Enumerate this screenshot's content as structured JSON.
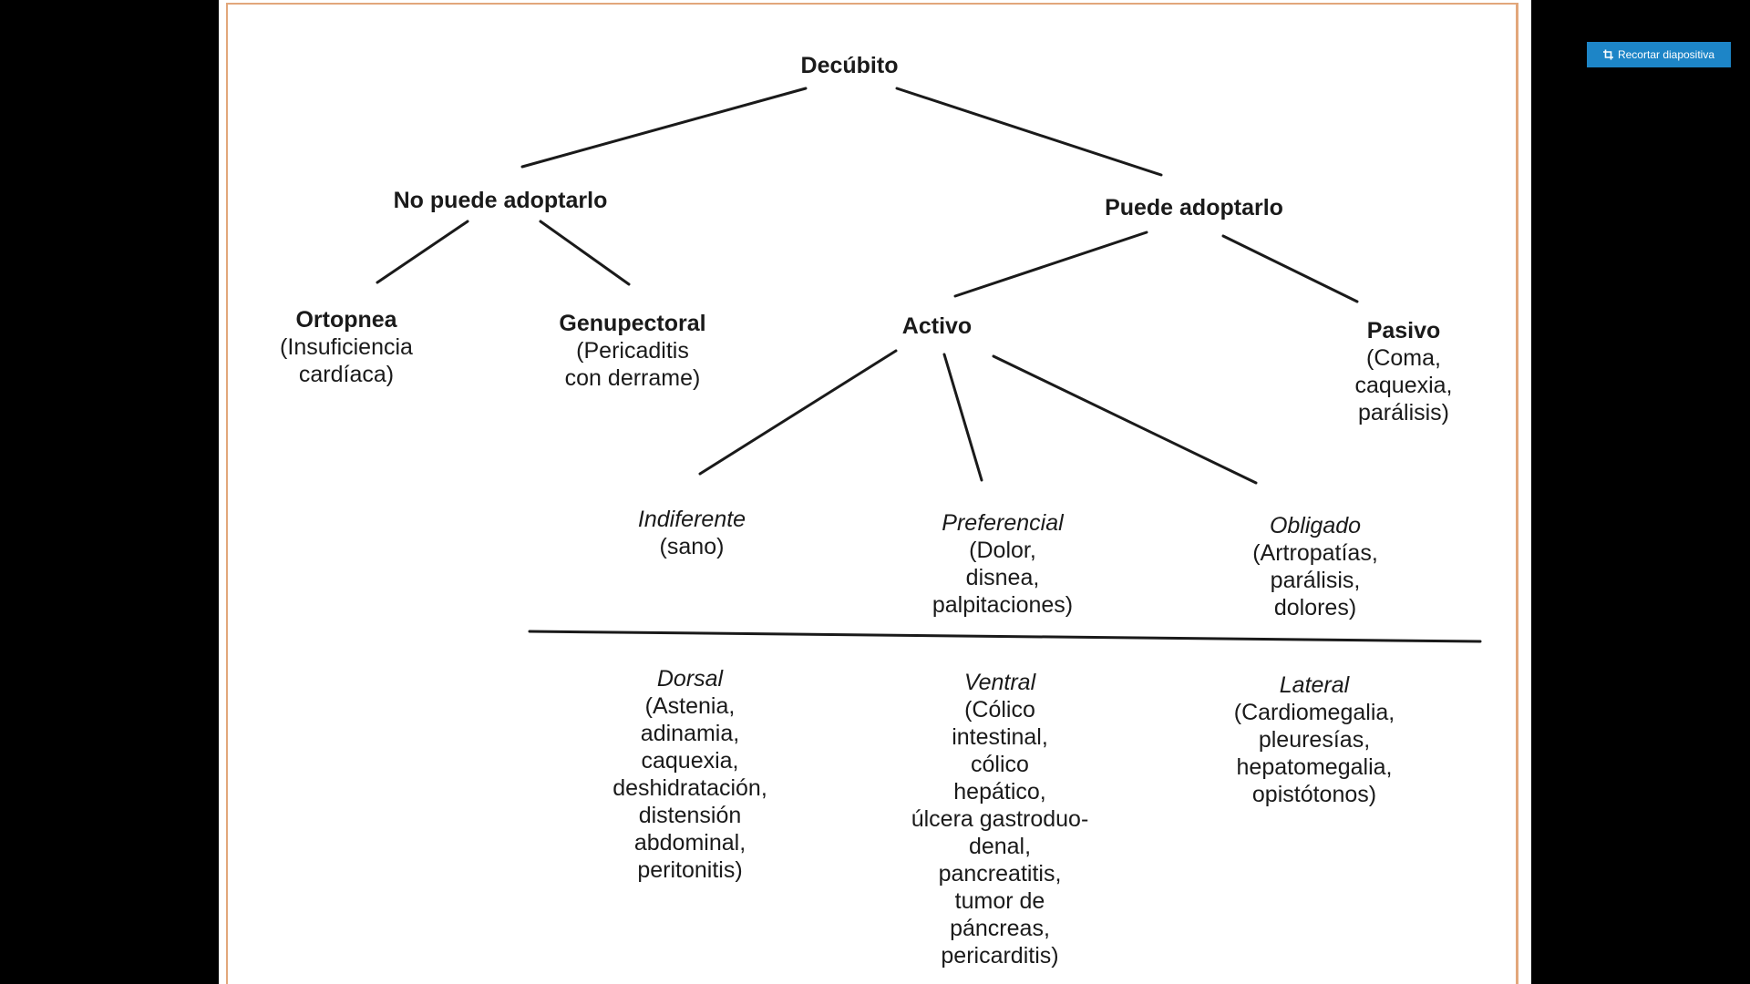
{
  "toolbar": {
    "crop_label": "Recortar diapositiva",
    "crop_icon": "crop-icon",
    "accent": "#1d85c7"
  },
  "slide": {
    "border_color": "#e2a77b",
    "root": {
      "title": "Decúbito"
    },
    "branches": {
      "cannot": {
        "title": "No puede adoptarlo",
        "children": [
          {
            "title": "Ortopnea",
            "detail": "(Insuficiencia\ncardíaca)"
          },
          {
            "title": "Genupectoral",
            "detail": "(Pericaditis\ncon derrame)"
          }
        ]
      },
      "can": {
        "title": "Puede adoptarlo",
        "active": {
          "title": "Activo",
          "children": [
            {
              "title": "Indiferente",
              "detail": "(sano)"
            },
            {
              "title": "Preferencial",
              "detail": "(Dolor,\ndisnea,\npalpitaciones)"
            },
            {
              "title": "Obligado",
              "detail": "(Artropatías,\nparálisis,\ndolores)"
            }
          ]
        },
        "passive": {
          "title": "Pasivo",
          "detail": "(Coma,\ncaquexia,\nparálisis)"
        }
      }
    },
    "positions": [
      {
        "title": "Dorsal",
        "detail": "(Astenia,\nadinamia,\ncaquexia,\ndeshidratación,\ndistensión\nabdominal,\nperitonitis)"
      },
      {
        "title": "Ventral",
        "detail": "(Cólico\nintestinal,\ncólico\nhepático,\núlcera gastroduo-\ndenal,\npancreatitis,\ntumor de\npáncreas,\npericarditis)"
      },
      {
        "title": "Lateral",
        "detail": "(Cardiomegalia,\npleuresías,\nhepatomegalia,\nopistótonos)"
      }
    ]
  }
}
